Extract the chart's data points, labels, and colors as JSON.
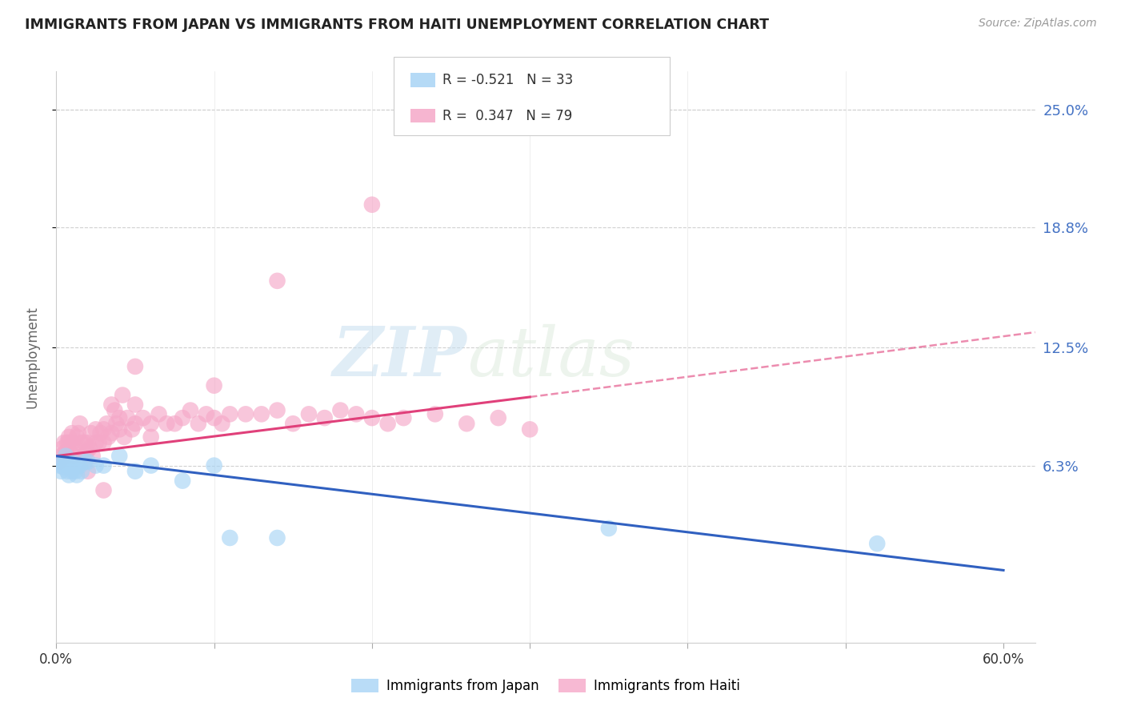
{
  "title": "IMMIGRANTS FROM JAPAN VS IMMIGRANTS FROM HAITI UNEMPLOYMENT CORRELATION CHART",
  "source": "Source: ZipAtlas.com",
  "ylabel": "Unemployment",
  "xlim": [
    0.0,
    0.62
  ],
  "ylim": [
    -0.03,
    0.27
  ],
  "yticks": [
    0.063,
    0.125,
    0.188,
    0.25
  ],
  "ytick_labels": [
    "6.3%",
    "12.5%",
    "18.8%",
    "25.0%"
  ],
  "xtick_positions": [
    0.0,
    0.1,
    0.2,
    0.3,
    0.4,
    0.5,
    0.6
  ],
  "xtick_labels_show": [
    "0.0%",
    "",
    "",
    "",
    "",
    "",
    "60.0%"
  ],
  "grid_color": "#d0d0d0",
  "background_color": "#ffffff",
  "watermark_zip": "ZIP",
  "watermark_atlas": "atlas",
  "japan_color": "#a8d4f5",
  "haiti_color": "#f5a8c8",
  "japan_line_color": "#3060c0",
  "haiti_line_color": "#e0407a",
  "japan_R": -0.521,
  "japan_N": 33,
  "haiti_R": 0.347,
  "haiti_N": 79,
  "japan_scatter_x": [
    0.002,
    0.003,
    0.004,
    0.005,
    0.006,
    0.006,
    0.007,
    0.007,
    0.008,
    0.008,
    0.009,
    0.009,
    0.01,
    0.01,
    0.011,
    0.012,
    0.013,
    0.014,
    0.015,
    0.016,
    0.018,
    0.02,
    0.025,
    0.03,
    0.04,
    0.05,
    0.06,
    0.08,
    0.1,
    0.11,
    0.14,
    0.35,
    0.52
  ],
  "japan_scatter_y": [
    0.063,
    0.06,
    0.065,
    0.062,
    0.068,
    0.065,
    0.06,
    0.063,
    0.058,
    0.065,
    0.062,
    0.063,
    0.065,
    0.06,
    0.063,
    0.06,
    0.058,
    0.063,
    0.063,
    0.06,
    0.065,
    0.065,
    0.063,
    0.063,
    0.068,
    0.06,
    0.063,
    0.055,
    0.063,
    0.025,
    0.025,
    0.03,
    0.022
  ],
  "haiti_scatter_x": [
    0.002,
    0.003,
    0.004,
    0.005,
    0.006,
    0.007,
    0.007,
    0.008,
    0.008,
    0.009,
    0.01,
    0.01,
    0.011,
    0.012,
    0.013,
    0.014,
    0.015,
    0.016,
    0.017,
    0.018,
    0.019,
    0.02,
    0.021,
    0.022,
    0.023,
    0.025,
    0.025,
    0.027,
    0.028,
    0.03,
    0.03,
    0.032,
    0.033,
    0.035,
    0.035,
    0.037,
    0.038,
    0.04,
    0.04,
    0.042,
    0.043,
    0.045,
    0.048,
    0.05,
    0.05,
    0.055,
    0.06,
    0.06,
    0.065,
    0.07,
    0.075,
    0.08,
    0.085,
    0.09,
    0.095,
    0.1,
    0.105,
    0.11,
    0.12,
    0.13,
    0.14,
    0.15,
    0.16,
    0.17,
    0.18,
    0.19,
    0.2,
    0.21,
    0.22,
    0.24,
    0.26,
    0.28,
    0.3,
    0.05,
    0.1,
    0.14,
    0.2,
    0.02,
    0.03
  ],
  "haiti_scatter_y": [
    0.065,
    0.068,
    0.072,
    0.075,
    0.07,
    0.068,
    0.075,
    0.075,
    0.078,
    0.07,
    0.08,
    0.075,
    0.068,
    0.072,
    0.078,
    0.08,
    0.085,
    0.075,
    0.068,
    0.075,
    0.07,
    0.075,
    0.072,
    0.08,
    0.068,
    0.075,
    0.082,
    0.075,
    0.08,
    0.082,
    0.075,
    0.085,
    0.078,
    0.095,
    0.08,
    0.092,
    0.085,
    0.088,
    0.082,
    0.1,
    0.078,
    0.088,
    0.082,
    0.085,
    0.095,
    0.088,
    0.085,
    0.078,
    0.09,
    0.085,
    0.085,
    0.088,
    0.092,
    0.085,
    0.09,
    0.088,
    0.085,
    0.09,
    0.09,
    0.09,
    0.092,
    0.085,
    0.09,
    0.088,
    0.092,
    0.09,
    0.088,
    0.085,
    0.088,
    0.09,
    0.085,
    0.088,
    0.082,
    0.115,
    0.105,
    0.16,
    0.2,
    0.06,
    0.05
  ],
  "haiti_line_x0": 0.0,
  "haiti_line_y0": 0.068,
  "haiti_line_x1": 0.6,
  "haiti_line_y1": 0.13,
  "haiti_line_dash_x1": 0.62,
  "haiti_line_dash_y1": 0.133,
  "japan_line_x0": 0.0,
  "japan_line_y0": 0.068,
  "japan_line_x1": 0.6,
  "japan_line_y1": 0.008
}
